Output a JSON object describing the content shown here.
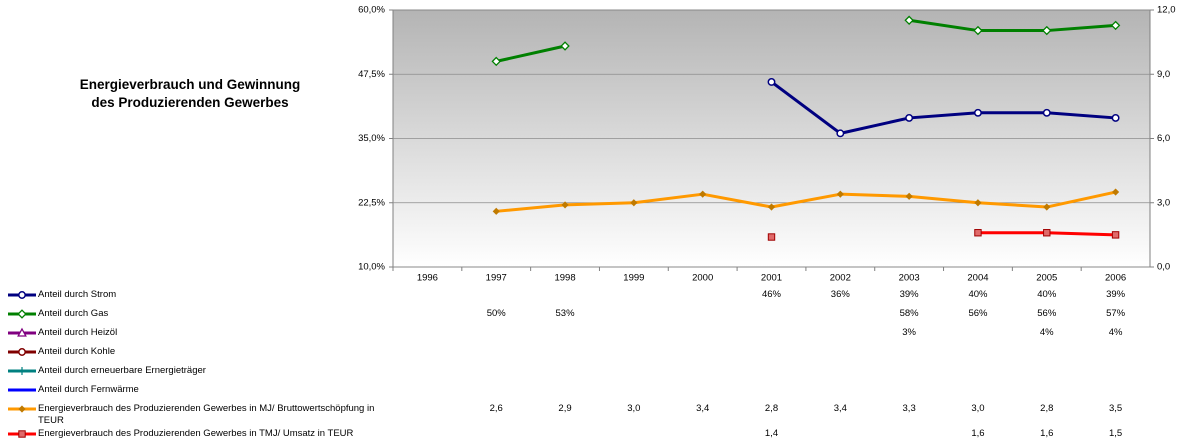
{
  "chart_data": {
    "type": "line",
    "title": [
      "Energieverbrauch und Gewinnung",
      "des Produzierenden Gewerbes"
    ],
    "categories": [
      "1996",
      "1997",
      "1998",
      "1999",
      "2000",
      "2001",
      "2002",
      "2003",
      "2004",
      "2005",
      "2006"
    ],
    "ylim": [
      10,
      60
    ],
    "yticks": [
      {
        "value": 10,
        "label": "10,0%"
      },
      {
        "value": 22.5,
        "label": "22,5%"
      },
      {
        "value": 35,
        "label": "35,0%"
      },
      {
        "value": 47.5,
        "label": "47,5%"
      },
      {
        "value": 60,
        "label": "60,0%"
      }
    ],
    "y2lim": [
      0,
      12
    ],
    "y2ticks": [
      {
        "value": 0,
        "label": "0,0"
      },
      {
        "value": 3,
        "label": "3,0"
      },
      {
        "value": 6,
        "label": "6,0"
      },
      {
        "value": 9,
        "label": "9,0"
      },
      {
        "value": 12,
        "label": "12,0"
      }
    ],
    "grid": true,
    "series": [
      {
        "name": "Anteil durch Strom",
        "color": "#000080",
        "marker": "circle",
        "values": [
          null,
          null,
          null,
          null,
          null,
          46,
          36,
          39,
          40,
          40,
          39
        ],
        "value_labels": [
          null,
          null,
          null,
          null,
          null,
          "46%",
          "36%",
          "39%",
          "40%",
          "40%",
          "39%"
        ]
      },
      {
        "name": "Anteil durch Gas",
        "color": "#008000",
        "marker": "diamond",
        "values": [
          null,
          50,
          53,
          null,
          null,
          null,
          null,
          58,
          56,
          56,
          57
        ],
        "value_labels": [
          null,
          "50%",
          "53%",
          null,
          null,
          null,
          null,
          "58%",
          "56%",
          "56%",
          "57%"
        ]
      },
      {
        "name": "Anteil durch Heizöl",
        "color": "#800080",
        "marker": "triangle",
        "values": [
          null,
          null,
          null,
          null,
          null,
          null,
          null,
          3,
          null,
          4,
          4
        ],
        "value_labels": [
          null,
          null,
          null,
          null,
          null,
          null,
          null,
          "3%",
          null,
          "4%",
          "4%"
        ]
      },
      {
        "name": "Anteil durch Kohle",
        "color": "#800000",
        "marker": "circle",
        "values": [
          null,
          null,
          null,
          null,
          null,
          null,
          null,
          null,
          null,
          null,
          null
        ]
      },
      {
        "name": "Anteil durch erneuerbare Ernergieträger",
        "color": "#008080",
        "marker": "plus",
        "values": [
          null,
          null,
          null,
          null,
          null,
          null,
          null,
          null,
          null,
          null,
          null
        ]
      },
      {
        "name": "Anteil durch Fernwärme",
        "color": "#0000ff",
        "marker": "dash",
        "values": [
          null,
          null,
          null,
          null,
          null,
          null,
          null,
          null,
          null,
          null,
          null
        ]
      },
      {
        "name": "Energieverbrauch des Produzierenden Gewerbes in MJ/ Bruttowertschöpfung in TEUR",
        "color": "#ff9900",
        "marker": "star",
        "axis": "y2",
        "values": [
          null,
          2.6,
          2.9,
          3.0,
          3.4,
          2.8,
          3.4,
          3.3,
          3.0,
          2.8,
          3.5
        ],
        "value_labels": [
          null,
          "2,6",
          "2,9",
          "3,0",
          "3,4",
          "2,8",
          "3,4",
          "3,3",
          "3,0",
          "2,8",
          "3,5"
        ]
      },
      {
        "name": "Energieverbrauch des Produzierenden Gewerbes in TMJ/ Umsatz in TEUR",
        "color": "#ff0000",
        "marker": "square",
        "axis": "y2",
        "values": [
          null,
          null,
          null,
          null,
          null,
          1.4,
          null,
          null,
          1.6,
          1.6,
          1.5
        ],
        "value_labels": [
          null,
          null,
          null,
          null,
          null,
          "1,4",
          null,
          null,
          "1,6",
          "1,6",
          "1,5"
        ]
      }
    ]
  }
}
